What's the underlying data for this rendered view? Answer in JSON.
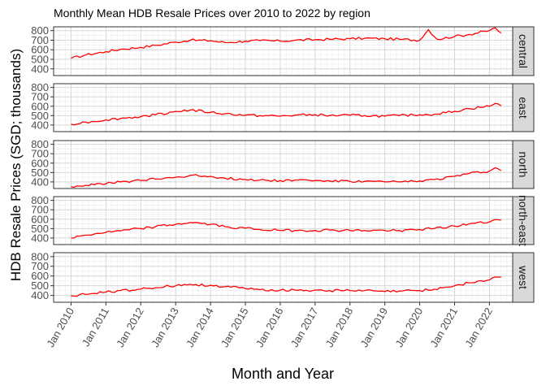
{
  "chart_data": {
    "type": "line",
    "title": "Monthly Mean HDB Resale Prices over 2010 to 2022 by region",
    "xlabel": "Month and Year",
    "ylabel": "HDB Resale Prices (SGD; thousands)",
    "x_tick_labels": [
      "Jan 2010",
      "Jan 2011",
      "Jan 2012",
      "Jan 2013",
      "Jan 2014",
      "Jan 2015",
      "Jan 2016",
      "Jan 2017",
      "Jan 2018",
      "Jan 2019",
      "Jan 2020",
      "Jan 2021",
      "Jan 2022"
    ],
    "x_range": [
      "2009-07",
      "2022-09"
    ],
    "y_ticks": [
      400,
      500,
      600,
      700,
      800
    ],
    "ylim": [
      330,
      840
    ],
    "grid": true,
    "facets": [
      {
        "name": "central",
        "anchors": [
          [
            "2010-01",
            510
          ],
          [
            "2010-06",
            545
          ],
          [
            "2011-01",
            580
          ],
          [
            "2011-06",
            605
          ],
          [
            "2012-01",
            625
          ],
          [
            "2012-06",
            645
          ],
          [
            "2013-01",
            680
          ],
          [
            "2013-06",
            700
          ],
          [
            "2014-01",
            695
          ],
          [
            "2014-06",
            675
          ],
          [
            "2015-01",
            690
          ],
          [
            "2015-06",
            695
          ],
          [
            "2016-01",
            690
          ],
          [
            "2016-06",
            700
          ],
          [
            "2017-01",
            705
          ],
          [
            "2017-06",
            710
          ],
          [
            "2018-01",
            715
          ],
          [
            "2018-06",
            720
          ],
          [
            "2019-01",
            715
          ],
          [
            "2019-06",
            710
          ],
          [
            "2020-01",
            700
          ],
          [
            "2020-04",
            810
          ],
          [
            "2020-07",
            710
          ],
          [
            "2021-01",
            740
          ],
          [
            "2021-06",
            760
          ],
          [
            "2022-01",
            800
          ],
          [
            "2022-03",
            830
          ],
          [
            "2022-05",
            775
          ]
        ]
      },
      {
        "name": "east",
        "anchors": [
          [
            "2010-01",
            410
          ],
          [
            "2010-06",
            430
          ],
          [
            "2011-01",
            455
          ],
          [
            "2011-06",
            470
          ],
          [
            "2012-01",
            490
          ],
          [
            "2012-06",
            510
          ],
          [
            "2013-01",
            545
          ],
          [
            "2013-06",
            560
          ],
          [
            "2014-01",
            535
          ],
          [
            "2014-06",
            520
          ],
          [
            "2015-01",
            505
          ],
          [
            "2015-06",
            500
          ],
          [
            "2016-01",
            495
          ],
          [
            "2016-06",
            505
          ],
          [
            "2017-01",
            510
          ],
          [
            "2017-06",
            500
          ],
          [
            "2018-01",
            505
          ],
          [
            "2018-06",
            500
          ],
          [
            "2019-01",
            495
          ],
          [
            "2019-06",
            500
          ],
          [
            "2020-01",
            510
          ],
          [
            "2020-06",
            515
          ],
          [
            "2021-01",
            545
          ],
          [
            "2021-06",
            575
          ],
          [
            "2022-01",
            600
          ],
          [
            "2022-03",
            630
          ],
          [
            "2022-05",
            605
          ]
        ]
      },
      {
        "name": "north",
        "anchors": [
          [
            "2010-01",
            350
          ],
          [
            "2010-06",
            365
          ],
          [
            "2011-01",
            380
          ],
          [
            "2011-06",
            400
          ],
          [
            "2012-01",
            415
          ],
          [
            "2012-06",
            430
          ],
          [
            "2013-01",
            450
          ],
          [
            "2013-06",
            470
          ],
          [
            "2014-01",
            460
          ],
          [
            "2014-06",
            440
          ],
          [
            "2015-01",
            425
          ],
          [
            "2015-06",
            420
          ],
          [
            "2016-01",
            415
          ],
          [
            "2016-06",
            420
          ],
          [
            "2017-01",
            415
          ],
          [
            "2017-06",
            410
          ],
          [
            "2018-01",
            405
          ],
          [
            "2018-06",
            405
          ],
          [
            "2019-01",
            400
          ],
          [
            "2019-06",
            400
          ],
          [
            "2020-01",
            410
          ],
          [
            "2020-06",
            425
          ],
          [
            "2021-01",
            460
          ],
          [
            "2021-06",
            490
          ],
          [
            "2022-01",
            515
          ],
          [
            "2022-03",
            550
          ],
          [
            "2022-05",
            520
          ]
        ]
      },
      {
        "name": "north-east",
        "anchors": [
          [
            "2010-01",
            400
          ],
          [
            "2010-06",
            430
          ],
          [
            "2011-01",
            460
          ],
          [
            "2011-06",
            475
          ],
          [
            "2012-01",
            500
          ],
          [
            "2012-06",
            520
          ],
          [
            "2013-01",
            545
          ],
          [
            "2013-06",
            565
          ],
          [
            "2014-01",
            545
          ],
          [
            "2014-06",
            520
          ],
          [
            "2015-01",
            505
          ],
          [
            "2015-06",
            490
          ],
          [
            "2016-01",
            480
          ],
          [
            "2016-06",
            480
          ],
          [
            "2017-01",
            480
          ],
          [
            "2017-06",
            485
          ],
          [
            "2018-01",
            480
          ],
          [
            "2018-06",
            480
          ],
          [
            "2019-01",
            480
          ],
          [
            "2019-06",
            480
          ],
          [
            "2020-01",
            490
          ],
          [
            "2020-06",
            500
          ],
          [
            "2021-01",
            525
          ],
          [
            "2021-06",
            550
          ],
          [
            "2022-01",
            570
          ],
          [
            "2022-03",
            595
          ],
          [
            "2022-05",
            590
          ]
        ]
      },
      {
        "name": "west",
        "anchors": [
          [
            "2010-01",
            395
          ],
          [
            "2010-06",
            410
          ],
          [
            "2011-01",
            435
          ],
          [
            "2011-06",
            450
          ],
          [
            "2012-01",
            465
          ],
          [
            "2012-06",
            480
          ],
          [
            "2013-01",
            500
          ],
          [
            "2013-06",
            515
          ],
          [
            "2014-01",
            505
          ],
          [
            "2014-06",
            490
          ],
          [
            "2015-01",
            470
          ],
          [
            "2015-06",
            460
          ],
          [
            "2016-01",
            455
          ],
          [
            "2016-06",
            455
          ],
          [
            "2017-01",
            455
          ],
          [
            "2017-06",
            450
          ],
          [
            "2018-01",
            450
          ],
          [
            "2018-06",
            450
          ],
          [
            "2019-01",
            440
          ],
          [
            "2019-06",
            445
          ],
          [
            "2020-01",
            450
          ],
          [
            "2020-06",
            465
          ],
          [
            "2021-01",
            500
          ],
          [
            "2021-06",
            530
          ],
          [
            "2022-01",
            560
          ],
          [
            "2022-03",
            590
          ],
          [
            "2022-05",
            590
          ]
        ]
      }
    ],
    "line_color": "#ff0000",
    "panel_border_color": "#333333",
    "strip_fill": "#d9d9d9",
    "grid_major_color": "#d6d6d6",
    "grid_minor_color": "#ececec"
  }
}
